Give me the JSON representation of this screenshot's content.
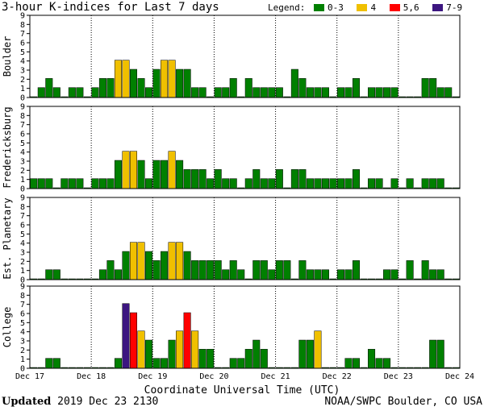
{
  "title": "3-hour K-indices for Last 7 days",
  "legend": {
    "label": "Legend:",
    "items": [
      {
        "label": "0-3",
        "color": "#008000"
      },
      {
        "label": "4",
        "color": "#f0c000"
      },
      {
        "label": "5,6",
        "color": "#ff0000"
      },
      {
        "label": "7-9",
        "color": "#3c1680"
      }
    ]
  },
  "footer": {
    "updated_label": "Updated",
    "updated_value": "2019 Dec 23 2130",
    "credit": "NOAA/SWPC Boulder, CO USA"
  },
  "chart_data": {
    "type": "bar",
    "xlabel": "Coordinate Universal Time (UTC)",
    "x_tick_labels": [
      "Dec 17",
      "Dec 18",
      "Dec 19",
      "Dec 20",
      "Dec 21",
      "Dec 22",
      "Dec 23",
      "Dec 24"
    ],
    "y_tick_labels": [
      "0",
      "1",
      "2",
      "3",
      "4",
      "5",
      "6",
      "7",
      "8",
      "9"
    ],
    "ylim": [
      0,
      9
    ],
    "color_thresholds": {
      "0-3": "#008000",
      "4": "#f0c000",
      "5,6": "#ff0000",
      "7-9": "#3c1680"
    },
    "panels": [
      {
        "ylabel": "Boulder",
        "values": [
          0,
          1,
          2,
          1,
          0,
          1,
          1,
          0,
          1,
          2,
          2,
          4,
          4,
          3,
          2,
          1,
          3,
          4,
          4,
          3,
          3,
          1,
          1,
          0,
          1,
          1,
          2,
          0,
          2,
          1,
          1,
          1,
          1,
          0,
          3,
          2,
          1,
          1,
          1,
          0,
          1,
          1,
          2,
          0,
          1,
          1,
          1,
          1,
          0,
          0,
          0,
          2,
          2,
          1,
          1,
          0
        ]
      },
      {
        "ylabel": "Fredericksburg",
        "values": [
          1,
          1,
          1,
          0,
          1,
          1,
          1,
          0,
          1,
          1,
          1,
          3,
          4,
          4,
          3,
          1,
          3,
          3,
          4,
          3,
          2,
          2,
          2,
          1,
          2,
          1,
          1,
          0,
          1,
          2,
          1,
          1,
          2,
          0,
          2,
          2,
          1,
          1,
          1,
          1,
          1,
          1,
          2,
          0,
          1,
          1,
          0,
          1,
          0,
          1,
          0,
          1,
          1,
          1,
          0,
          0
        ]
      },
      {
        "ylabel": "Est. Planetary",
        "values": [
          0,
          0,
          1,
          1,
          0,
          0,
          0,
          0,
          0,
          1,
          2,
          1,
          3,
          4,
          4,
          3,
          2,
          3,
          4,
          4,
          3,
          2,
          2,
          2,
          2,
          1,
          2,
          1,
          0,
          2,
          2,
          1,
          2,
          2,
          0,
          2,
          1,
          1,
          1,
          0,
          1,
          1,
          2,
          0,
          0,
          0,
          1,
          1,
          0,
          2,
          0,
          2,
          1,
          1,
          0,
          0
        ]
      },
      {
        "ylabel": "College",
        "values": [
          0,
          0,
          1,
          1,
          0,
          0,
          0,
          0,
          0,
          0,
          0,
          1,
          7,
          6,
          4,
          3,
          1,
          1,
          3,
          4,
          6,
          4,
          2,
          2,
          0,
          0,
          1,
          1,
          2,
          3,
          2,
          0,
          0,
          0,
          0,
          3,
          3,
          4,
          0,
          0,
          0,
          1,
          1,
          0,
          2,
          1,
          1,
          0,
          0,
          0,
          0,
          0,
          3,
          3,
          0,
          0
        ]
      }
    ]
  }
}
